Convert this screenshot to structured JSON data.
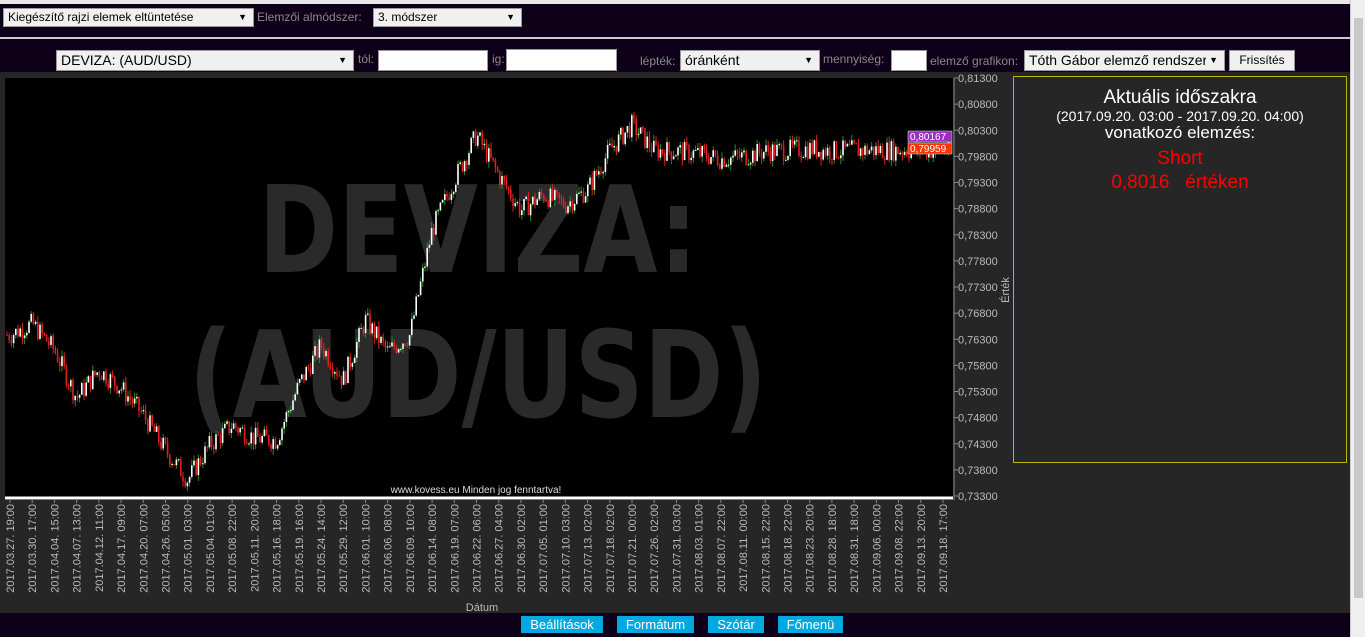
{
  "toolbar1": {
    "hide_select": "Kiegészítő rajzi elemek eltüntetése",
    "submethod_label": "Elemzői almódszer:",
    "submethod_value": "3. módszer"
  },
  "toolbar2": {
    "instrument": "DEVIZA: (AUD/USD)",
    "from_label": "tól:",
    "from_value": "",
    "to_label": "ig:",
    "to_value": "",
    "step_label": "lépték:",
    "step_value": "óránként",
    "qty_label": "mennyiség:",
    "qty_value": "",
    "chart_label": "elemző grafikon:",
    "chart_value": "Tóth Gábor elemző rendszer",
    "refresh": "Frissítés"
  },
  "info": {
    "title": "Aktuális időszakra",
    "period": "(2017.09.20. 03:00 - 2017.09.20. 04:00)",
    "subtitle": "vonatkozó elemzés:",
    "signal": "Short",
    "value": "0,8016",
    "value_suffix": "értéken",
    "signal_color": "#ff0000"
  },
  "footer": {
    "buttons": [
      "Beállítások",
      "Formátum",
      "Szótár",
      "Főmenü"
    ],
    "button_color": "#00a8e0"
  },
  "chart_data": {
    "type": "candlestick",
    "watermark": "DEVIZA: (AUD/USD)",
    "copyright": "www.kovess.eu Minden jog fenntartva!",
    "xlabel": "Dátum",
    "ylabel": "Érték",
    "ylim": [
      0.733,
      0.813
    ],
    "yticks": [
      "0,81300",
      "0,80800",
      "0,80300",
      "0,79800",
      "0,79300",
      "0,78800",
      "0,78300",
      "0,77800",
      "0,77300",
      "0,76800",
      "0,76300",
      "0,75800",
      "0,75300",
      "0,74800",
      "0,74300",
      "0,73800",
      "0,73300"
    ],
    "xticks": [
      "2017.03.27. 19:00",
      "2017.03.30. 17:00",
      "2017.04.04. 15:00",
      "2017.04.07. 13:00",
      "2017.04.12. 11:00",
      "2017.04.17. 09:00",
      "2017.04.20. 07:00",
      "2017.04.26. 05:00",
      "2017.05.01. 03:00",
      "2017.05.04. 01:00",
      "2017.05.08. 22:00",
      "2017.05.11. 20:00",
      "2017.05.16. 18:00",
      "2017.05.19. 16:00",
      "2017.05.24. 14:00",
      "2017.05.29. 12:00",
      "2017.06.01. 10:00",
      "2017.06.06. 08:00",
      "2017.06.09. 10:00",
      "2017.06.14. 08:00",
      "2017.06.19. 07:00",
      "2017.06.22. 06:00",
      "2017.06.27. 04:00",
      "2017.06.30. 02:00",
      "2017.07.05. 01:00",
      "2017.07.10. 03:00",
      "2017.07.13. 02:00",
      "2017.07.18. 02:00",
      "2017.07.21. 00:00",
      "2017.07.26. 02:00",
      "2017.07.31. 03:00",
      "2017.08.03. 01:00",
      "2017.08.07. 22:00",
      "2017.08.11. 00:00",
      "2017.08.15. 22:00",
      "2017.08.18. 22:00",
      "2017.08.23. 20:00",
      "2017.08.28. 18:00",
      "2017.08.31. 18:00",
      "2017.09.06. 00:00",
      "2017.09.08. 22:00",
      "2017.09.13. 20:00",
      "2017.09.18. 17:00"
    ],
    "close_at_ticks": [
      0.7638,
      0.766,
      0.761,
      0.7518,
      0.7571,
      0.7537,
      0.7485,
      0.7418,
      0.7361,
      0.7428,
      0.7466,
      0.7441,
      0.7437,
      0.7542,
      0.7619,
      0.7552,
      0.7667,
      0.7606,
      0.7638,
      0.7839,
      0.7935,
      0.8021,
      0.7944,
      0.7877,
      0.7906,
      0.7887,
      0.7916,
      0.7992,
      0.804,
      0.7992,
      0.799,
      0.7985,
      0.7975,
      0.798,
      0.799,
      0.7992,
      0.7995,
      0.799,
      0.7992,
      0.7992,
      0.7992,
      0.7992,
      0.7992
    ],
    "price_tags": [
      {
        "value": "0,80167",
        "color": "#9b30c0"
      },
      {
        "value": "0,79959",
        "color": "#ff3300"
      }
    ],
    "up_color": "#2a8a2a",
    "down_color": "#e02020"
  }
}
